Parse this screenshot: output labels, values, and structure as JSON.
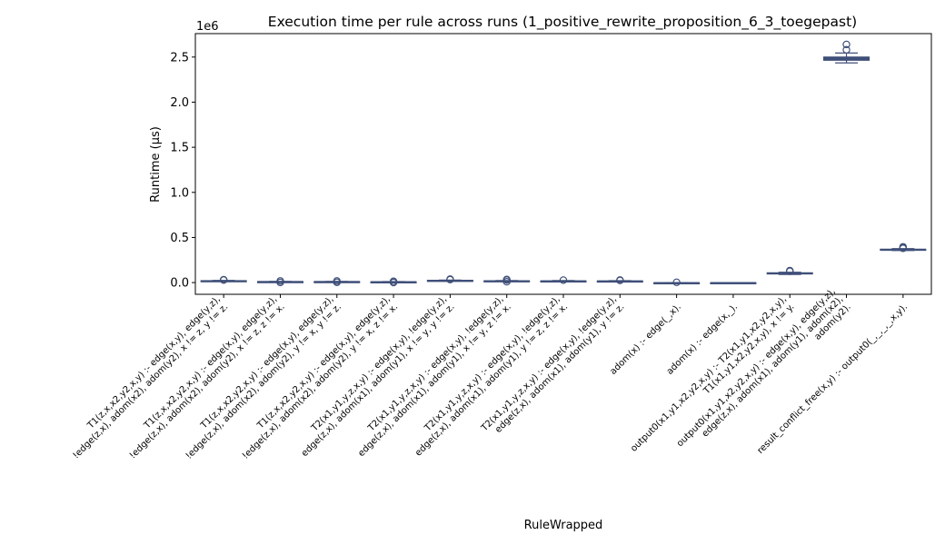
{
  "chart_data": {
    "type": "box",
    "title": "Execution time per rule across runs (1_positive_rewrite_proposition_6_3_toegepast)",
    "xlabel": "RuleWrapped",
    "ylabel": "Runtime (µs)",
    "y_multiplier_label": "1e6",
    "ylim": [
      -130000,
      2760000
    ],
    "yticks": [
      0,
      500000,
      1000000,
      1500000,
      2000000,
      2500000
    ],
    "ytick_labels": [
      "0.0",
      "0.5",
      "1.0",
      "1.5",
      "2.0",
      "2.5"
    ],
    "box_color": "#3f4f78",
    "categories": [
      [
        "T1(z,x,x2,y2,x,y) :-    edge(x,y),    edge(y,z),",
        "!edge(z,x),   adom(x2),   adom(y2),    x != z,    y != z."
      ],
      [
        "T1(z,x,x2,y2,x,y) :-    edge(x,y),    edge(y,z),",
        "!edge(z,x),   adom(x2),   adom(y2),    x != z,    z != x."
      ],
      [
        "T1(z,x,x2,y2,x,y) :-    edge(x,y),    edge(y,z),",
        "!edge(z,x),   adom(x2),   adom(y2),    y != x,    y != z."
      ],
      [
        "T1(z,x,x2,y2,x,y) :-    edge(x,y),    edge(y,z),",
        "!edge(z,x),   adom(x2),   adom(y2),    y != x,    z != x."
      ],
      [
        "T2(x1,y1,y,z,x,y) :-    edge(x,y),    !edge(y,z),",
        "edge(z,x),   adom(x1),   adom(y1),    x != y,    y != z."
      ],
      [
        "T2(x1,y1,y,z,x,y) :-    edge(x,y),    !edge(y,z),",
        "edge(z,x),   adom(x1),   adom(y1),    x != y,    z != x."
      ],
      [
        "T2(x1,y1,y,z,x,y) :-    edge(x,y),    !edge(y,z),",
        "edge(z,x),   adom(x1),   adom(y1),    y != z,    z != x."
      ],
      [
        "T2(x1,y1,y,z,x,y) :-    edge(x,y),    !edge(y,z),",
        "edge(z,x),   adom(x1),   adom(y1),    y != z."
      ],
      [
        "adom(x) :-    edge(_,x)."
      ],
      [
        "adom(x) :-    edge(x,_)."
      ],
      [
        "output0(x1,y1,x2,y2,x,y) :-    T2(x1,y1,x2,y2,x,y),",
        "T1(x1,y1,x2,y2,x,y),    x != y."
      ],
      [
        "output0(x1,y1,x2,y2,x,y) :-    edge(x,y),    edge(y,z),",
        "edge(z,x),   adom(x1),   adom(y1),    adom(x2),",
        "adom(y2)."
      ],
      [
        "result_conflict_free(x,y) :-    output0(_,_,_,_,x,y)."
      ]
    ],
    "boxes": [
      {
        "min": 14000,
        "q1": 17000,
        "median": 19000,
        "q3": 21000,
        "max": 24000,
        "outliers": [
          28000,
          32000
        ]
      },
      {
        "min": 7000,
        "q1": 9000,
        "median": 10000,
        "q3": 11000,
        "max": 13000,
        "outliers": [
          2000,
          18000
        ]
      },
      {
        "min": 7000,
        "q1": 9000,
        "median": 10000,
        "q3": 11000,
        "max": 13000,
        "outliers": [
          3000,
          18000
        ]
      },
      {
        "min": 5000,
        "q1": 7000,
        "median": 8000,
        "q3": 9000,
        "max": 11000,
        "outliers": [
          1000,
          14000
        ]
      },
      {
        "min": 19000,
        "q1": 21000,
        "median": 23000,
        "q3": 25000,
        "max": 28000,
        "outliers": [
          33000,
          38000
        ]
      },
      {
        "min": 13000,
        "q1": 16000,
        "median": 18000,
        "q3": 20000,
        "max": 23000,
        "outliers": [
          9000,
          28000,
          34000
        ]
      },
      {
        "min": 13000,
        "q1": 15000,
        "median": 17000,
        "q3": 19000,
        "max": 22000,
        "outliers": [
          27000
        ]
      },
      {
        "min": 12000,
        "q1": 14000,
        "median": 16000,
        "q3": 18000,
        "max": 21000,
        "outliers": [
          24000,
          28000
        ]
      },
      {
        "min": -4000,
        "q1": -2500,
        "median": -2000,
        "q3": -1500,
        "max": -500,
        "outliers": [
          3000
        ]
      },
      {
        "min": -3000,
        "q1": -2000,
        "median": -1500,
        "q3": -1000,
        "max": 0,
        "outliers": []
      },
      {
        "min": 90000,
        "q1": 98000,
        "median": 103000,
        "q3": 108000,
        "max": 115000,
        "outliers": [
          125000,
          132000
        ]
      },
      {
        "min": 2435000,
        "q1": 2465000,
        "median": 2480000,
        "q3": 2500000,
        "max": 2545000,
        "outliers": [
          2580000,
          2640000
        ]
      },
      {
        "min": 355000,
        "q1": 362000,
        "median": 366000,
        "q3": 370000,
        "max": 376000,
        "outliers": [
          380000,
          388000,
          396000
        ]
      }
    ]
  }
}
